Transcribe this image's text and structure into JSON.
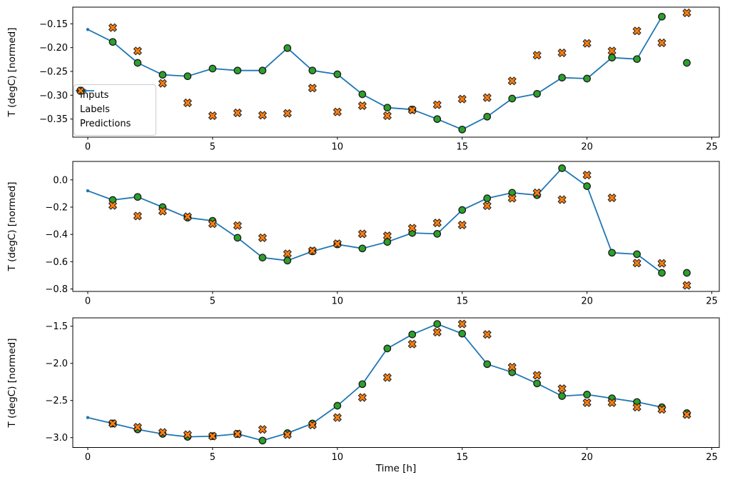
{
  "figure": {
    "ylabel": "T (degC) [normed]",
    "xlabel": "Time [h]",
    "background_color": "#ffffff",
    "spine_color": "#000000"
  },
  "legend": {
    "items": [
      {
        "label": "Inputs",
        "marker": "line-dot",
        "color": "#1f77b4"
      },
      {
        "label": "Labels",
        "marker": "circle",
        "color": "#2ca02c"
      },
      {
        "label": "Predictions",
        "marker": "X",
        "color": "#ff7f0e"
      }
    ],
    "edge_color": "#cccccc",
    "position": "upper-left-of-top-panel"
  },
  "marker_edge_color": "#1a1a1a",
  "chart_data": [
    {
      "type": "line",
      "title": "",
      "ylabel": "T (degC) [normed]",
      "xlabel": "",
      "grid": false,
      "xlim": [
        -0.6,
        25.3
      ],
      "ylim": [
        -0.388,
        -0.115
      ],
      "xticks": [
        0,
        5,
        10,
        15,
        20,
        25
      ],
      "xtick_labels": [
        "0",
        "5",
        "10",
        "15",
        "20",
        "25"
      ],
      "yticks": [
        -0.15,
        -0.2,
        -0.25,
        -0.3,
        -0.35
      ],
      "ytick_labels": [
        "−0.15",
        "−0.20",
        "−0.25",
        "−0.30",
        "−0.35"
      ],
      "series": [
        {
          "name": "Inputs",
          "type": "line",
          "marker": "dot",
          "color": "#1f77b4",
          "x": [
            0,
            1,
            2,
            3,
            4,
            5,
            6,
            7,
            8,
            9,
            10,
            11,
            12,
            13,
            14,
            15,
            16,
            17,
            18,
            19,
            20,
            21,
            22,
            23
          ],
          "y": [
            -0.162,
            -0.188,
            -0.232,
            -0.257,
            -0.26,
            -0.244,
            -0.248,
            -0.248,
            -0.201,
            -0.248,
            -0.256,
            -0.298,
            -0.326,
            -0.33,
            -0.35,
            -0.372,
            -0.345,
            -0.307,
            -0.297,
            -0.263,
            -0.265,
            -0.221,
            -0.224,
            -0.135
          ]
        },
        {
          "name": "Labels",
          "type": "scatter",
          "marker": "circle",
          "color": "#2ca02c",
          "x": [
            1,
            2,
            3,
            4,
            5,
            6,
            7,
            8,
            9,
            10,
            11,
            12,
            13,
            14,
            15,
            16,
            17,
            18,
            19,
            20,
            21,
            22,
            23,
            24
          ],
          "y": [
            -0.188,
            -0.232,
            -0.257,
            -0.26,
            -0.244,
            -0.248,
            -0.248,
            -0.201,
            -0.248,
            -0.256,
            -0.298,
            -0.326,
            -0.33,
            -0.35,
            -0.372,
            -0.345,
            -0.307,
            -0.297,
            -0.263,
            -0.265,
            -0.221,
            -0.224,
            -0.135,
            -0.232
          ]
        },
        {
          "name": "Predictions",
          "type": "scatter",
          "marker": "X",
          "color": "#ff7f0e",
          "x": [
            1,
            2,
            3,
            4,
            5,
            6,
            7,
            8,
            9,
            10,
            11,
            12,
            13,
            14,
            15,
            16,
            17,
            18,
            19,
            20,
            21,
            22,
            23,
            24
          ],
          "y": [
            -0.158,
            -0.207,
            -0.275,
            -0.316,
            -0.343,
            -0.337,
            -0.342,
            -0.338,
            -0.285,
            -0.335,
            -0.322,
            -0.343,
            -0.331,
            -0.32,
            -0.308,
            -0.305,
            -0.27,
            -0.216,
            -0.211,
            -0.191,
            -0.207,
            -0.165,
            -0.19,
            -0.127
          ]
        }
      ]
    },
    {
      "type": "line",
      "title": "",
      "ylabel": "T (degC) [normed]",
      "xlabel": "",
      "grid": false,
      "xlim": [
        -0.6,
        25.3
      ],
      "ylim": [
        -0.818,
        0.135
      ],
      "xticks": [
        0,
        5,
        10,
        15,
        20,
        25
      ],
      "xtick_labels": [
        "0",
        "5",
        "10",
        "15",
        "20",
        "25"
      ],
      "yticks": [
        0.0,
        -0.2,
        -0.4,
        -0.6,
        -0.8
      ],
      "ytick_labels": [
        "0.0",
        "−0.2",
        "−0.4",
        "−0.6",
        "−0.8"
      ],
      "series": [
        {
          "name": "Inputs",
          "type": "line",
          "marker": "dot",
          "color": "#1f77b4",
          "x": [
            0,
            1,
            2,
            3,
            4,
            5,
            6,
            7,
            8,
            9,
            10,
            11,
            12,
            13,
            14,
            15,
            16,
            17,
            18,
            19,
            20,
            21,
            22,
            23
          ],
          "y": [
            -0.08,
            -0.148,
            -0.125,
            -0.2,
            -0.277,
            -0.3,
            -0.425,
            -0.57,
            -0.592,
            -0.524,
            -0.473,
            -0.503,
            -0.455,
            -0.389,
            -0.396,
            -0.221,
            -0.135,
            -0.095,
            -0.112,
            0.085,
            -0.046,
            -0.534,
            -0.545,
            -0.682
          ]
        },
        {
          "name": "Labels",
          "type": "scatter",
          "marker": "circle",
          "color": "#2ca02c",
          "x": [
            1,
            2,
            3,
            4,
            5,
            6,
            7,
            8,
            9,
            10,
            11,
            12,
            13,
            14,
            15,
            16,
            17,
            18,
            19,
            20,
            21,
            22,
            23,
            24
          ],
          "y": [
            -0.148,
            -0.125,
            -0.2,
            -0.277,
            -0.3,
            -0.425,
            -0.57,
            -0.592,
            -0.524,
            -0.473,
            -0.503,
            -0.455,
            -0.389,
            -0.396,
            -0.221,
            -0.135,
            -0.095,
            -0.112,
            0.085,
            -0.046,
            -0.534,
            -0.545,
            -0.682,
            -0.682
          ]
        },
        {
          "name": "Predictions",
          "type": "scatter",
          "marker": "X",
          "color": "#ff7f0e",
          "x": [
            1,
            2,
            3,
            4,
            5,
            6,
            7,
            8,
            9,
            10,
            11,
            12,
            13,
            14,
            15,
            16,
            17,
            18,
            19,
            20,
            21,
            22,
            23,
            24
          ],
          "y": [
            -0.188,
            -0.265,
            -0.23,
            -0.27,
            -0.322,
            -0.335,
            -0.425,
            -0.542,
            -0.52,
            -0.468,
            -0.396,
            -0.41,
            -0.354,
            -0.316,
            -0.331,
            -0.19,
            -0.135,
            -0.095,
            -0.145,
            0.035,
            -0.132,
            -0.61,
            -0.612,
            -0.774
          ]
        }
      ]
    },
    {
      "type": "line",
      "title": "",
      "ylabel": "T (degC) [normed]",
      "xlabel": "Time [h]",
      "grid": false,
      "xlim": [
        -0.6,
        25.3
      ],
      "ylim": [
        -3.133,
        -1.387
      ],
      "xticks": [
        0,
        5,
        10,
        15,
        20,
        25
      ],
      "xtick_labels": [
        "0",
        "5",
        "10",
        "15",
        "20",
        "25"
      ],
      "yticks": [
        -1.5,
        -2.0,
        -2.5,
        -3.0
      ],
      "ytick_labels": [
        "−1.5",
        "−2.0",
        "−2.5",
        "−3.0"
      ],
      "series": [
        {
          "name": "Inputs",
          "type": "line",
          "marker": "dot",
          "color": "#1f77b4",
          "x": [
            0,
            1,
            2,
            3,
            4,
            5,
            6,
            7,
            8,
            9,
            10,
            11,
            12,
            13,
            14,
            15,
            16,
            17,
            18,
            19,
            20,
            21,
            22,
            23
          ],
          "y": [
            -2.73,
            -2.81,
            -2.89,
            -2.95,
            -2.99,
            -2.98,
            -2.95,
            -3.04,
            -2.94,
            -2.81,
            -2.57,
            -2.28,
            -1.8,
            -1.61,
            -1.47,
            -1.6,
            -2.01,
            -2.12,
            -2.27,
            -2.44,
            -2.42,
            -2.47,
            -2.52,
            -2.59
          ]
        },
        {
          "name": "Labels",
          "type": "scatter",
          "marker": "circle",
          "color": "#2ca02c",
          "x": [
            1,
            2,
            3,
            4,
            5,
            6,
            7,
            8,
            9,
            10,
            11,
            12,
            13,
            14,
            15,
            16,
            17,
            18,
            19,
            20,
            21,
            22,
            23,
            24
          ],
          "y": [
            -2.81,
            -2.89,
            -2.95,
            -2.99,
            -2.98,
            -2.95,
            -3.04,
            -2.94,
            -2.81,
            -2.57,
            -2.28,
            -1.8,
            -1.61,
            -1.47,
            -1.6,
            -2.01,
            -2.12,
            -2.27,
            -2.44,
            -2.42,
            -2.47,
            -2.52,
            -2.59,
            -2.67
          ]
        },
        {
          "name": "Predictions",
          "type": "scatter",
          "marker": "X",
          "color": "#ff7f0e",
          "x": [
            1,
            2,
            3,
            4,
            5,
            6,
            7,
            8,
            9,
            10,
            11,
            12,
            13,
            14,
            15,
            16,
            17,
            18,
            19,
            20,
            21,
            22,
            23,
            24
          ],
          "y": [
            -2.81,
            -2.86,
            -2.93,
            -2.96,
            -2.98,
            -2.95,
            -2.89,
            -2.96,
            -2.83,
            -2.73,
            -2.46,
            -2.19,
            -1.74,
            -1.58,
            -1.47,
            -1.61,
            -2.05,
            -2.16,
            -2.34,
            -2.53,
            -2.53,
            -2.59,
            -2.62,
            -2.69
          ]
        }
      ]
    }
  ]
}
